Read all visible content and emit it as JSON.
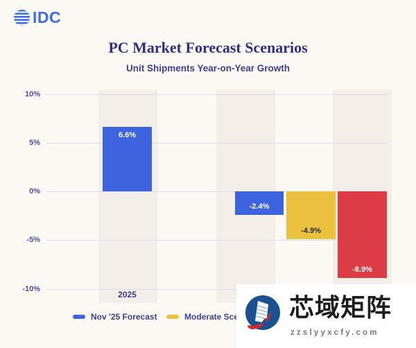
{
  "header": {
    "logo_text": "IDC",
    "title": "PC Market Forecast Scenarios",
    "subtitle": "Unit Shipments Year-on-Year Growth"
  },
  "chart_data": {
    "type": "bar",
    "title": "PC Market Forecast Scenarios",
    "subtitle": "Unit Shipments Year-on-Year Growth",
    "ylabel": "",
    "ylim": [
      -10,
      10
    ],
    "yticks": [
      10,
      5,
      0,
      -5,
      -10
    ],
    "ytick_labels": [
      "10%",
      "5%",
      "0%",
      "-5%",
      "-10%"
    ],
    "x_categories_visible": [
      "2025"
    ],
    "grid": true,
    "legend_position": "bottom",
    "bars": [
      {
        "series": "Nov '25 Forecast",
        "category": "2025",
        "value": 6.6,
        "label": "6.6%",
        "color": "#3e63de",
        "label_color": "#ffffff"
      },
      {
        "series": "Nov '25 Forecast",
        "value": -2.4,
        "label": "-2.4%",
        "color": "#3e63de",
        "label_color": "#ffffff"
      },
      {
        "series": "Moderate Scen",
        "value": -4.9,
        "label": "-4.9%",
        "color": "#eac23f",
        "label_color": "#2b2b2b"
      },
      {
        "series": "",
        "value": -8.9,
        "label": "-8.9%",
        "color": "#dc3c45",
        "label_color": "#ffffff"
      }
    ]
  },
  "legend": {
    "items": [
      {
        "label": "Nov '25 Forecast",
        "color": "#3e63de"
      },
      {
        "label": "Moderate Scen",
        "color": "#eac23f"
      }
    ]
  },
  "watermark": {
    "cn_text": "芯域矩阵",
    "domain": "zzslyyxcfy.com"
  },
  "colors": {
    "background": "#fcf9f5",
    "band": "#f3efe8",
    "gridline": "#dddbe9",
    "axis_text": "#4c4ba0",
    "title_text": "#2e3183",
    "brand_blue": "#3a6cf0",
    "bar_blue": "#3e63de",
    "bar_yellow": "#eac23f",
    "bar_red": "#dc3c45",
    "watermark_circle_blue": "#1a5191",
    "watermark_red": "#cf2b2b"
  }
}
